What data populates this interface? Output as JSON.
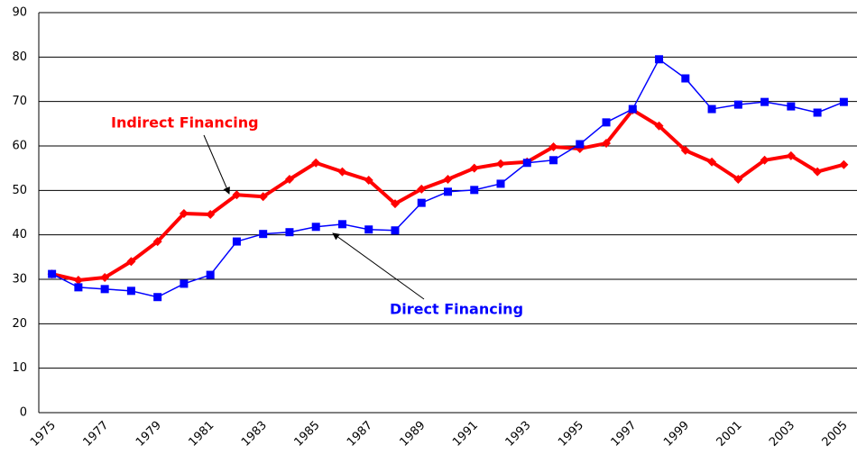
{
  "chart_data": {
    "type": "line",
    "categories": [
      "1975",
      null,
      "1977",
      null,
      "1979",
      null,
      "1981",
      null,
      "1983",
      null,
      "1985",
      null,
      "1987",
      null,
      "1989",
      null,
      "1991",
      null,
      "1993",
      null,
      "1995",
      null,
      "1997",
      null,
      "1999",
      null,
      "2001",
      null,
      "2003",
      null,
      "2005"
    ],
    "series": [
      {
        "name": "Indirect Financing",
        "color": "#ff0000",
        "values": [
          31.2,
          29.8,
          30.4,
          34,
          38.5,
          44.8,
          44.6,
          49,
          48.6,
          52.5,
          56.2,
          54.2,
          52.3,
          47,
          50.3,
          52.5,
          55,
          56,
          56.4,
          59.8,
          59.4,
          60.6,
          68.1,
          64.5,
          59,
          56.4,
          52.5,
          56.8,
          57.8,
          54.2,
          55.8
        ]
      },
      {
        "name": "Direct Financing",
        "color": "#0000ff",
        "values": [
          31.2,
          28.2,
          27.8,
          27.4,
          26,
          29,
          31,
          38.5,
          40.2,
          40.6,
          41.8,
          42.4,
          41.2,
          41,
          47.2,
          49.7,
          50.1,
          51.5,
          56.2,
          56.8,
          60.4,
          65.3,
          68.3,
          79.5,
          75.2,
          68.3,
          69.3,
          69.9,
          68.9,
          67.5,
          69.9
        ]
      }
    ],
    "ylim": [
      0,
      90
    ],
    "yticks": [
      0,
      10,
      20,
      30,
      40,
      50,
      60,
      70,
      80,
      90
    ],
    "grid": true
  }
}
